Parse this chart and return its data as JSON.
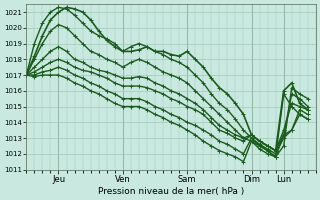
{
  "bg_color": "#c8e8e0",
  "grid_color": "#a0c8b8",
  "line_color": "#1a5c1a",
  "marker": "+",
  "xlabel": "Pression niveau de la mer( hPa )",
  "ylim": [
    1011,
    1021.5
  ],
  "yticks": [
    1011,
    1012,
    1013,
    1014,
    1015,
    1016,
    1017,
    1018,
    1019,
    1020,
    1021
  ],
  "day_labels": [
    "Jeu",
    "Ven",
    "Sam",
    "Dim",
    "Lun"
  ],
  "day_positions": [
    24,
    72,
    120,
    168,
    192
  ],
  "xmin": 0,
  "xmax": 216,
  "lines": [
    {
      "x": [
        0,
        6,
        12,
        18,
        24,
        30,
        36,
        42,
        48,
        54,
        60,
        66,
        72,
        78,
        84,
        90,
        96,
        102,
        108,
        114,
        120,
        126,
        132,
        138,
        144,
        150,
        156,
        162,
        168,
        174,
        180,
        186,
        192,
        198,
        204,
        210
      ],
      "y": [
        1017.0,
        1018.2,
        1019.5,
        1020.5,
        1021.0,
        1021.3,
        1021.2,
        1021.0,
        1020.5,
        1019.8,
        1019.2,
        1018.8,
        1018.5,
        1018.5,
        1018.6,
        1018.8,
        1018.5,
        1018.5,
        1018.3,
        1018.2,
        1018.5,
        1018.0,
        1017.5,
        1016.8,
        1016.2,
        1015.8,
        1015.2,
        1014.5,
        1013.2,
        1012.8,
        1012.5,
        1012.2,
        1016.0,
        1016.5,
        1015.2,
        1014.8
      ],
      "lw": 1.2
    },
    {
      "x": [
        0,
        6,
        12,
        18,
        24,
        30,
        36,
        42,
        48,
        54,
        60,
        66,
        72,
        78,
        84,
        90,
        96,
        102,
        108,
        114,
        120,
        126,
        132,
        138,
        144,
        150,
        156,
        162,
        168,
        174,
        180,
        186,
        192,
        198,
        204,
        210
      ],
      "y": [
        1017.0,
        1019.0,
        1020.3,
        1021.0,
        1021.3,
        1021.2,
        1020.8,
        1020.3,
        1019.8,
        1019.5,
        1019.3,
        1019.0,
        1018.5,
        1018.8,
        1019.0,
        1018.8,
        1018.5,
        1018.3,
        1018.0,
        1017.8,
        1017.5,
        1017.0,
        1016.5,
        1015.8,
        1015.2,
        1014.8,
        1014.2,
        1013.5,
        1013.0,
        1012.5,
        1012.2,
        1011.8,
        1012.5,
        1016.2,
        1015.8,
        1015.5
      ],
      "lw": 1.0
    },
    {
      "x": [
        0,
        6,
        12,
        18,
        24,
        30,
        36,
        42,
        48,
        54,
        60,
        66,
        72,
        78,
        84,
        90,
        96,
        102,
        108,
        114,
        120,
        126,
        132,
        138,
        144,
        150,
        156,
        162,
        168,
        174,
        180,
        186,
        192,
        198,
        204,
        210
      ],
      "y": [
        1017.0,
        1018.0,
        1019.0,
        1019.8,
        1020.2,
        1020.0,
        1019.5,
        1019.0,
        1018.5,
        1018.3,
        1018.0,
        1017.8,
        1017.5,
        1017.8,
        1018.0,
        1017.8,
        1017.5,
        1017.2,
        1017.0,
        1016.8,
        1016.5,
        1016.0,
        1015.5,
        1015.0,
        1014.5,
        1014.0,
        1013.5,
        1013.0,
        1012.8,
        1012.5,
        1012.2,
        1011.8,
        1013.2,
        1015.8,
        1015.5,
        1015.0
      ],
      "lw": 1.0
    },
    {
      "x": [
        0,
        6,
        12,
        18,
        24,
        30,
        36,
        42,
        48,
        54,
        60,
        66,
        72,
        78,
        84,
        90,
        96,
        102,
        108,
        114,
        120,
        126,
        132,
        138,
        144,
        150,
        156,
        162,
        168,
        174,
        180,
        186,
        192,
        198,
        204,
        210
      ],
      "y": [
        1017.0,
        1017.5,
        1018.0,
        1018.5,
        1018.8,
        1018.5,
        1018.0,
        1017.8,
        1017.5,
        1017.3,
        1017.2,
        1017.0,
        1016.8,
        1016.8,
        1016.9,
        1016.8,
        1016.5,
        1016.3,
        1016.0,
        1015.8,
        1015.5,
        1015.2,
        1014.8,
        1014.3,
        1013.8,
        1013.5,
        1013.2,
        1013.0,
        1013.2,
        1012.8,
        1012.5,
        1012.2,
        1013.5,
        1015.2,
        1015.0,
        1014.8
      ],
      "lw": 1.0
    },
    {
      "x": [
        0,
        6,
        12,
        18,
        24,
        30,
        36,
        42,
        48,
        54,
        60,
        66,
        72,
        78,
        84,
        90,
        96,
        102,
        108,
        114,
        120,
        126,
        132,
        138,
        144,
        150,
        156,
        162,
        168,
        174,
        180,
        186,
        192,
        198,
        204,
        210
      ],
      "y": [
        1017.0,
        1017.2,
        1017.5,
        1017.8,
        1018.0,
        1017.8,
        1017.5,
        1017.3,
        1017.2,
        1017.0,
        1016.8,
        1016.5,
        1016.3,
        1016.3,
        1016.3,
        1016.2,
        1016.0,
        1015.8,
        1015.5,
        1015.3,
        1015.0,
        1014.8,
        1014.5,
        1014.0,
        1013.5,
        1013.3,
        1013.0,
        1012.8,
        1013.2,
        1012.8,
        1012.5,
        1012.2,
        1013.2,
        1013.5,
        1014.8,
        1014.5
      ],
      "lw": 1.0
    },
    {
      "x": [
        0,
        6,
        12,
        18,
        24,
        30,
        36,
        42,
        48,
        54,
        60,
        66,
        72,
        78,
        84,
        90,
        96,
        102,
        108,
        114,
        120,
        126,
        132,
        138,
        144,
        150,
        156,
        162,
        168,
        174,
        180,
        186,
        192,
        198,
        204,
        210
      ],
      "y": [
        1017.0,
        1017.0,
        1017.2,
        1017.3,
        1017.5,
        1017.3,
        1017.0,
        1016.8,
        1016.5,
        1016.3,
        1016.0,
        1015.8,
        1015.5,
        1015.5,
        1015.5,
        1015.3,
        1015.0,
        1014.8,
        1014.5,
        1014.3,
        1014.0,
        1013.8,
        1013.5,
        1013.2,
        1012.8,
        1012.6,
        1012.3,
        1012.0,
        1013.0,
        1012.6,
        1012.3,
        1012.0,
        1013.0,
        1013.5,
        1014.5,
        1014.2
      ],
      "lw": 1.0
    },
    {
      "x": [
        0,
        6,
        12,
        18,
        24,
        30,
        36,
        42,
        48,
        54,
        60,
        66,
        72,
        78,
        84,
        90,
        96,
        102,
        108,
        114,
        120,
        126,
        132,
        138,
        144,
        150,
        156,
        162,
        168,
        174,
        180,
        186,
        192,
        198,
        204,
        210
      ],
      "y": [
        1017.0,
        1016.9,
        1017.0,
        1017.0,
        1017.0,
        1016.8,
        1016.5,
        1016.3,
        1016.0,
        1015.8,
        1015.5,
        1015.2,
        1015.0,
        1015.0,
        1015.0,
        1014.8,
        1014.5,
        1014.3,
        1014.0,
        1013.8,
        1013.5,
        1013.2,
        1012.8,
        1012.5,
        1012.2,
        1012.0,
        1011.8,
        1011.5,
        1012.8,
        1012.3,
        1012.0,
        1011.8,
        1015.8,
        1015.0,
        1014.5,
        1014.2
      ],
      "lw": 1.0
    }
  ]
}
